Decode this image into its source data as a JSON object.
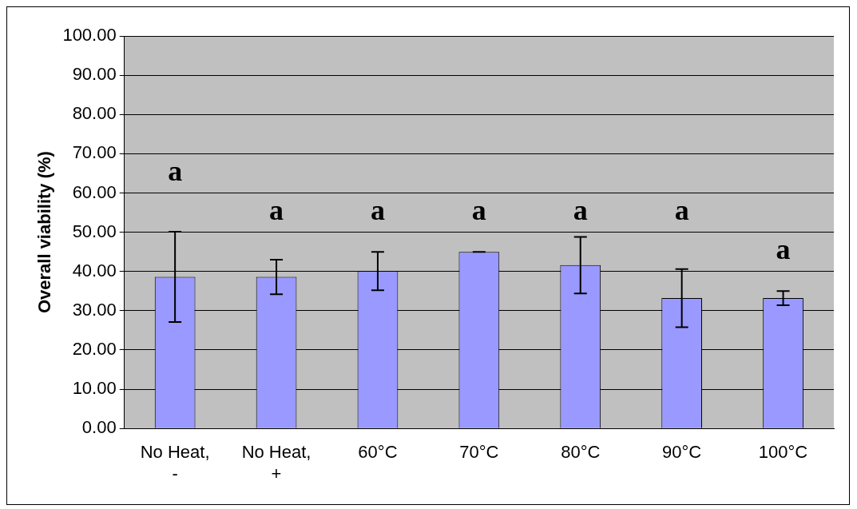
{
  "chart_data": {
    "type": "bar",
    "ylabel": "Overall viability (%)",
    "categories": [
      "No Heat, -",
      "No Heat, +",
      "60°C",
      "70°C",
      "80°C",
      "90°C",
      "100°C"
    ],
    "values": [
      38.6,
      38.6,
      40.1,
      45.0,
      41.6,
      33.2,
      33.2
    ],
    "errors": [
      11.5,
      4.4,
      4.9,
      0,
      7.2,
      7.4,
      1.8
    ],
    "color": "#9999ff",
    "ylim": [
      0,
      100
    ],
    "yticks": [
      {
        "value": 0,
        "label": "0.00"
      },
      {
        "value": 10,
        "label": "10.00"
      },
      {
        "value": 20,
        "label": "20.00"
      },
      {
        "value": 30,
        "label": "30.00"
      },
      {
        "value": 40,
        "label": "40.00"
      },
      {
        "value": 50,
        "label": "50.00"
      },
      {
        "value": 60,
        "label": "60.00"
      },
      {
        "value": 70,
        "label": "70.00"
      },
      {
        "value": 80,
        "label": "80.00"
      },
      {
        "value": 90,
        "label": "90.00"
      },
      {
        "value": 100,
        "label": "100.00"
      }
    ],
    "grid": "y",
    "legend": false,
    "annotations": [
      "a",
      "a",
      "a",
      "a",
      "a",
      "a",
      "a"
    ]
  }
}
